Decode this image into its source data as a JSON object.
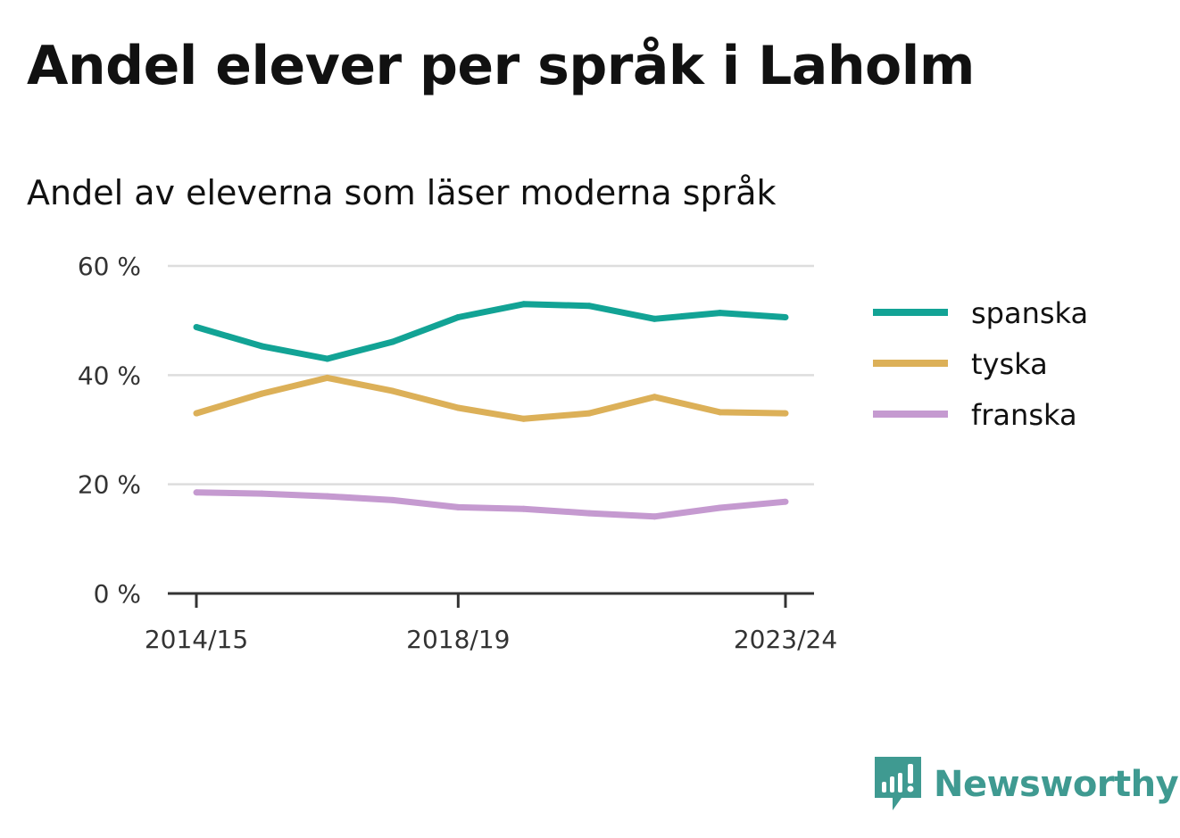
{
  "header": {
    "title": "Andel elever per språk i Laholm",
    "subtitle": "Andel av eleverna som läser moderna språk"
  },
  "brand": {
    "name": "Newsworthy",
    "icon": "newsworthy-logo-icon",
    "color": "#3f9a91"
  },
  "chart_data": {
    "type": "line",
    "title": "Andel elever per språk i Laholm",
    "subtitle": "Andel av eleverna som läser moderna språk",
    "x": [
      "2014/15",
      "2015/16",
      "2016/17",
      "2017/18",
      "2018/19",
      "2019/20",
      "2020/21",
      "2021/22",
      "2022/23",
      "2023/24"
    ],
    "x_tick_labels": [
      "2014/15",
      "2018/19",
      "2023/24"
    ],
    "y_ticks": [
      0,
      20,
      40,
      60
    ],
    "y_tick_labels": [
      "0 %",
      "20 %",
      "40 %",
      "60 %"
    ],
    "ylim": [
      0,
      60
    ],
    "grid": true,
    "legend_position": "right",
    "series": [
      {
        "name": "spanska",
        "color": "#12a395",
        "values": [
          48.8,
          45.3,
          43.0,
          46.1,
          50.6,
          53.0,
          52.7,
          50.3,
          51.4,
          50.6
        ]
      },
      {
        "name": "tyska",
        "color": "#dcb058",
        "values": [
          33.0,
          36.6,
          39.5,
          37.1,
          34.0,
          32.0,
          33.0,
          36.0,
          33.2,
          33.0
        ]
      },
      {
        "name": "franska",
        "color": "#c59ad0",
        "values": [
          18.5,
          18.3,
          17.8,
          17.1,
          15.8,
          15.5,
          14.7,
          14.1,
          15.7,
          16.8
        ]
      }
    ]
  }
}
